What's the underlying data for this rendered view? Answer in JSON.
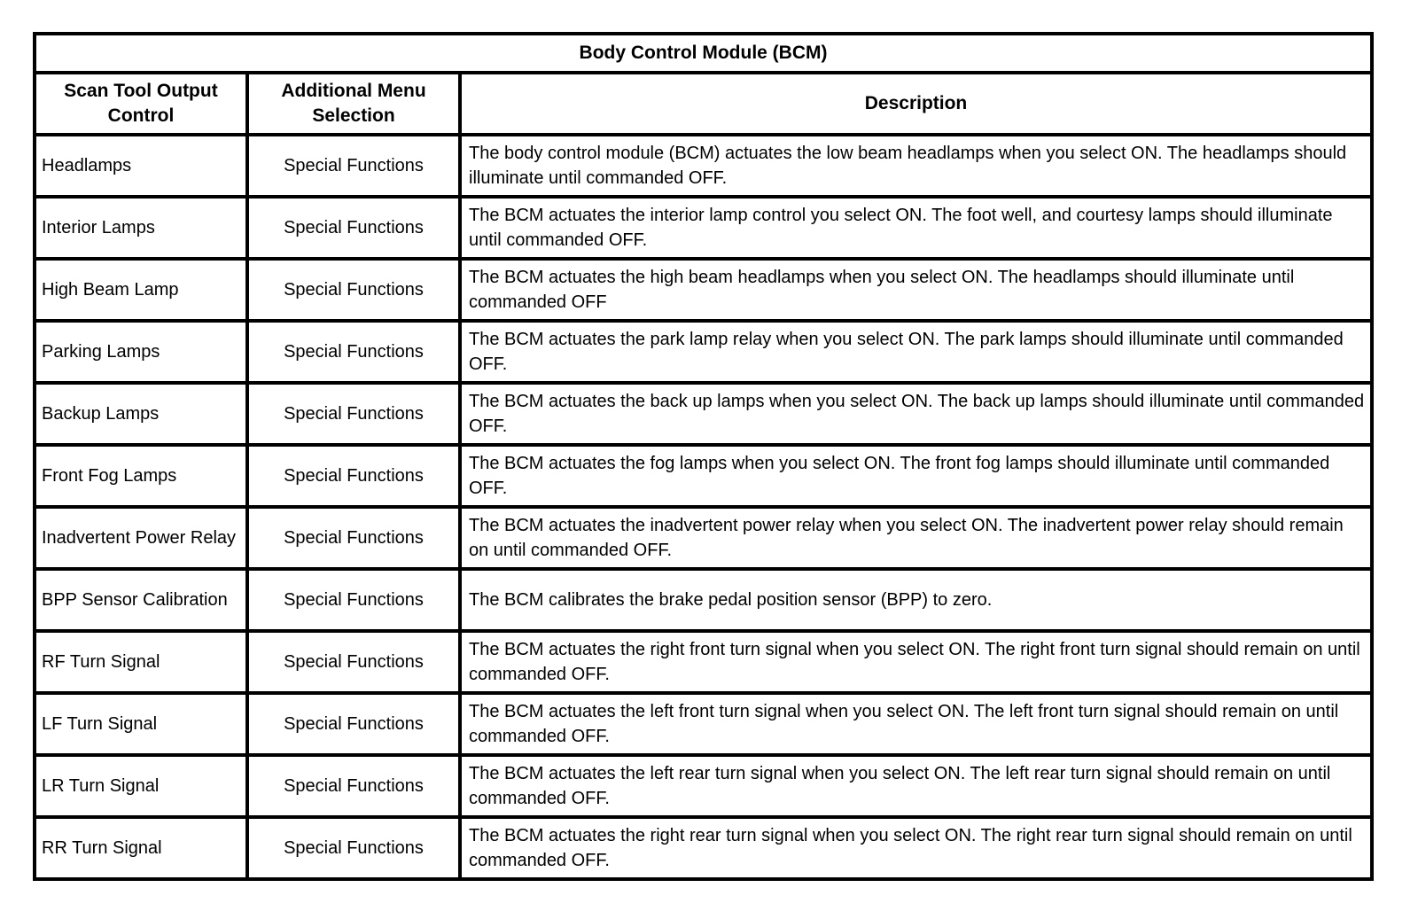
{
  "page": {
    "background_color": "#ffffff",
    "border_color": "#000000",
    "text_color": "#000000"
  },
  "table": {
    "title": "Body Control Module (BCM)",
    "columns": [
      "Scan Tool Output Control",
      "Additional Menu Selection",
      "Description"
    ],
    "rows": [
      {
        "control": "Headlamps",
        "menu": "Special Functions",
        "description": "The body control module (BCM) actuates the low beam headlamps when you select ON. The headlamps should illuminate until commanded OFF."
      },
      {
        "control": "Interior Lamps",
        "menu": "Special Functions",
        "description": "The BCM actuates the interior lamp control you select ON. The foot well, and courtesy lamps should illuminate until commanded OFF."
      },
      {
        "control": "High Beam Lamp",
        "menu": "Special Functions",
        "description": "The BCM actuates the high beam headlamps when you select ON. The headlamps should illuminate until commanded OFF"
      },
      {
        "control": "Parking Lamps",
        "menu": "Special Functions",
        "description": "The BCM actuates the park lamp relay when you select ON. The park lamps should illuminate until commanded OFF."
      },
      {
        "control": "Backup Lamps",
        "menu": "Special Functions",
        "description": "The BCM actuates the back up lamps when you select ON. The back up lamps should illuminate until commanded OFF."
      },
      {
        "control": "Front Fog Lamps",
        "menu": "Special Functions",
        "description": "The BCM actuates the fog lamps when you select ON. The front fog lamps should illuminate until commanded OFF."
      },
      {
        "control": "Inadvertent Power Relay",
        "menu": "Special Functions",
        "description": "The BCM actuates the inadvertent power relay when you select ON. The inadvertent power relay should remain on until commanded OFF."
      },
      {
        "control": "BPP Sensor Calibration",
        "menu": "Special Functions",
        "description": "The BCM calibrates the brake pedal position sensor (BPP) to zero."
      },
      {
        "control": "RF Turn Signal",
        "menu": "Special Functions",
        "description": "The BCM actuates the right front turn signal when you select ON. The right front turn signal should remain on until commanded OFF."
      },
      {
        "control": "LF Turn Signal",
        "menu": "Special Functions",
        "description": "The BCM actuates the left front turn signal when you select ON. The left front turn signal should remain on until commanded OFF."
      },
      {
        "control": "LR Turn Signal",
        "menu": "Special Functions",
        "description": "The BCM actuates the left rear turn signal when you select ON. The left rear turn signal should remain on until commanded OFF."
      },
      {
        "control": "RR Turn Signal",
        "menu": "Special Functions",
        "description": "The BCM actuates the right rear turn signal when you select ON. The right rear turn signal should remain on until commanded OFF."
      }
    ]
  }
}
